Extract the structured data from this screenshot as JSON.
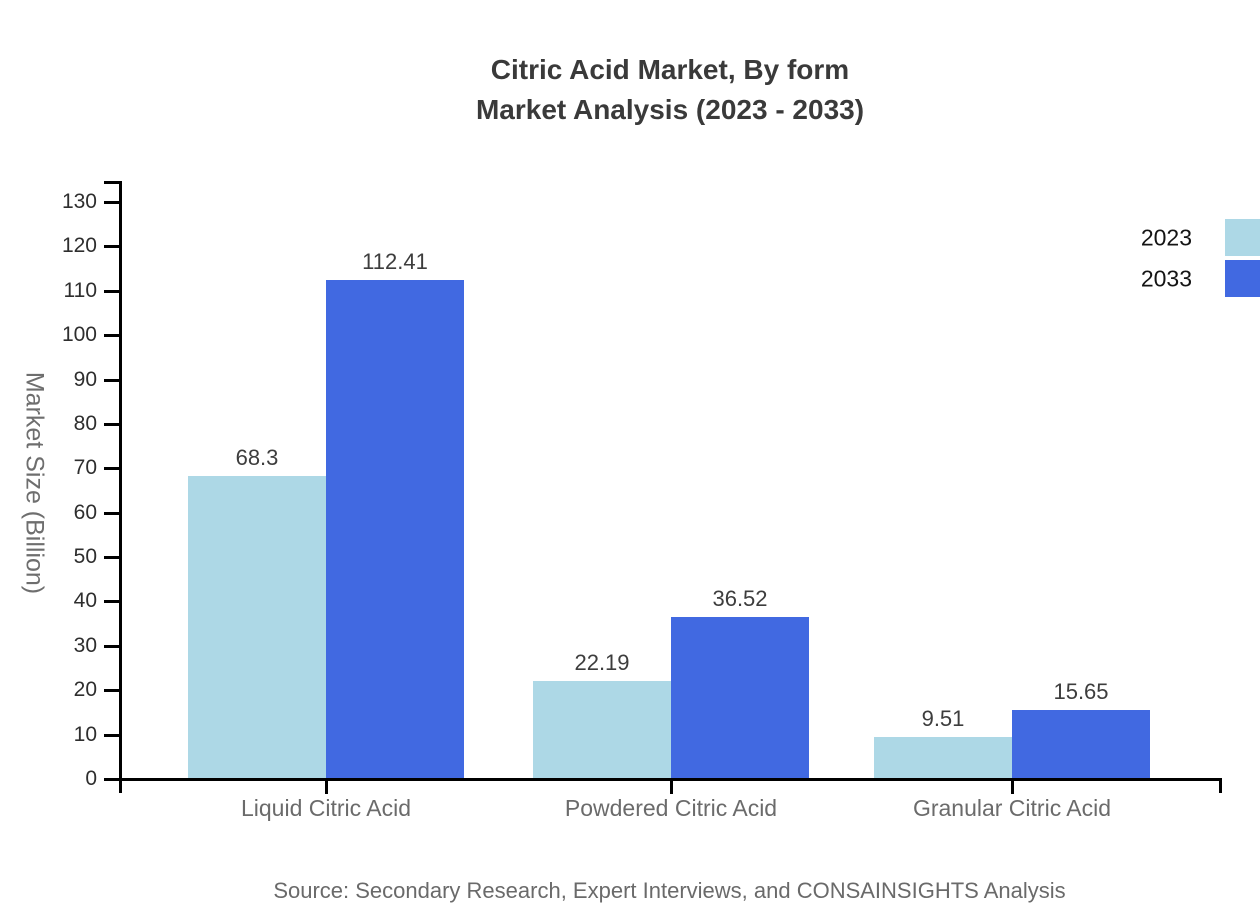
{
  "title": {
    "line1": "Citric Acid Market, By form",
    "line2": "Market Analysis (2023 - 2033)"
  },
  "source": "Source: Secondary Research, Expert Interviews, and CONSAINSIGHTS Analysis",
  "colors": {
    "series_2023": "#ADD8E6",
    "series_2033": "#4169E1",
    "axis": "#000000",
    "title_text": "#3A3A3A",
    "value_label_text": "#3D3D3D",
    "category_text": "#6B6B6B",
    "tick_text": "#2E2E2E",
    "legend_text": "#141414",
    "muted_text": "#6A6A6A"
  },
  "chart_data": {
    "type": "bar",
    "title": "Citric Acid Market, By form Market Analysis (2023 - 2033)",
    "categories": [
      "Liquid Citric Acid",
      "Powdered Citric Acid",
      "Granular Citric Acid"
    ],
    "series": [
      {
        "name": "2023",
        "color": "#ADD8E6",
        "values": [
          68.3,
          22.19,
          9.51
        ]
      },
      {
        "name": "2033",
        "color": "#4169E1",
        "values": [
          112.41,
          36.52,
          15.65
        ]
      }
    ],
    "xlabel": "",
    "ylabel": "Market Size (Billion)",
    "ylim": [
      0,
      130
    ],
    "ytick_step": 10,
    "grid": false,
    "legend_position": "top-right",
    "value_labels": true
  }
}
